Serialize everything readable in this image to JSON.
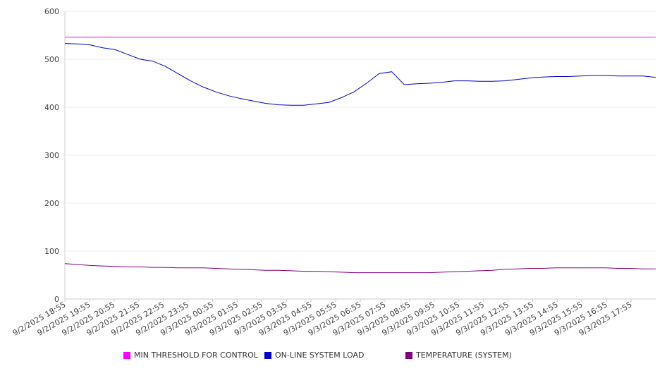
{
  "chart_data": {
    "type": "line",
    "title": "",
    "xlabel": "",
    "ylabel": "",
    "ylim": [
      0,
      600
    ],
    "yticks": [
      "0",
      "100",
      "200",
      "300",
      "400",
      "500",
      "600"
    ],
    "grid": true,
    "legend_position": "bottom",
    "x_tick_labels": [
      "9/2/2025 18:55",
      "9/2/2025 19:55",
      "9/2/2025 20:55",
      "9/2/2025 21:55",
      "9/2/2025 22:55",
      "9/2/2025 23:55",
      "9/3/2025 00:55",
      "9/3/2025 01:55",
      "9/3/2025 02:55",
      "9/3/2025 03:55",
      "9/3/2025 04:55",
      "9/3/2025 05:55",
      "9/3/2025 06:55",
      "9/3/2025 07:55",
      "9/3/2025 08:55",
      "9/3/2025 09:55",
      "9/3/2025 10:55",
      "9/3/2025 11:55",
      "9/3/2025 12:55",
      "9/3/2025 13:55",
      "9/3/2025 14:55",
      "9/3/2025 15:55",
      "9/3/2025 16:55",
      "9/3/2025 17:55"
    ],
    "x": [
      "9/2/2025 18:55",
      "9/2/2025 19:25",
      "9/2/2025 19:55",
      "9/2/2025 20:25",
      "9/2/2025 20:55",
      "9/2/2025 21:25",
      "9/2/2025 21:55",
      "9/2/2025 22:25",
      "9/2/2025 22:55",
      "9/2/2025 23:25",
      "9/2/2025 23:55",
      "9/3/2025 00:25",
      "9/3/2025 00:55",
      "9/3/2025 01:25",
      "9/3/2025 01:55",
      "9/3/2025 02:25",
      "9/3/2025 02:55",
      "9/3/2025 03:25",
      "9/3/2025 03:55",
      "9/3/2025 04:25",
      "9/3/2025 04:55",
      "9/3/2025 05:25",
      "9/3/2025 05:55",
      "9/3/2025 06:25",
      "9/3/2025 06:55",
      "9/3/2025 07:25",
      "9/3/2025 07:55",
      "9/3/2025 08:25",
      "9/3/2025 08:55",
      "9/3/2025 09:25",
      "9/3/2025 09:55",
      "9/3/2025 10:25",
      "9/3/2025 10:55",
      "9/3/2025 11:25",
      "9/3/2025 11:55",
      "9/3/2025 12:25",
      "9/3/2025 12:55",
      "9/3/2025 13:25",
      "9/3/2025 13:55",
      "9/3/2025 14:25",
      "9/3/2025 14:55",
      "9/3/2025 15:25",
      "9/3/2025 15:55",
      "9/3/2025 16:25",
      "9/3/2025 16:55",
      "9/3/2025 17:25",
      "9/3/2025 17:55",
      "9/3/2025 18:25"
    ],
    "series": [
      {
        "name": "MIN THRESHOLD FOR CONTROL",
        "color": "#ff00ff",
        "values": [
          546,
          546,
          546,
          546,
          546,
          546,
          546,
          546,
          546,
          546,
          546,
          546,
          546,
          546,
          546,
          546,
          546,
          546,
          546,
          546,
          546,
          546,
          546,
          546,
          546,
          546,
          546,
          546,
          546,
          546,
          546,
          546,
          546,
          546,
          546,
          546,
          546,
          546,
          546,
          546,
          546,
          546,
          546,
          546,
          546,
          546,
          546,
          546
        ]
      },
      {
        "name": "ON-LINE SYSTEM LOAD",
        "color": "#0000cc",
        "values": [
          533,
          532,
          530,
          524,
          520,
          510,
          500,
          496,
          485,
          470,
          455,
          442,
          432,
          424,
          418,
          413,
          408,
          405,
          404,
          404,
          407,
          410,
          420,
          432,
          450,
          470,
          474,
          447,
          449,
          450,
          452,
          455,
          455,
          454,
          454,
          455,
          458,
          461,
          463,
          464,
          464,
          465,
          466,
          466,
          465,
          465,
          465,
          462
        ]
      },
      {
        "name": "TEMPERATURE (SYSTEM)",
        "color": "#800080",
        "values": [
          74,
          72,
          70,
          69,
          68,
          67,
          67,
          66,
          66,
          65,
          65,
          65,
          64,
          63,
          62,
          61,
          60,
          60,
          59,
          58,
          58,
          57,
          56,
          55,
          55,
          55,
          55,
          55,
          55,
          55,
          56,
          57,
          58,
          59,
          60,
          62,
          63,
          64,
          64,
          65,
          65,
          65,
          65,
          65,
          64,
          64,
          63,
          63
        ]
      }
    ]
  }
}
